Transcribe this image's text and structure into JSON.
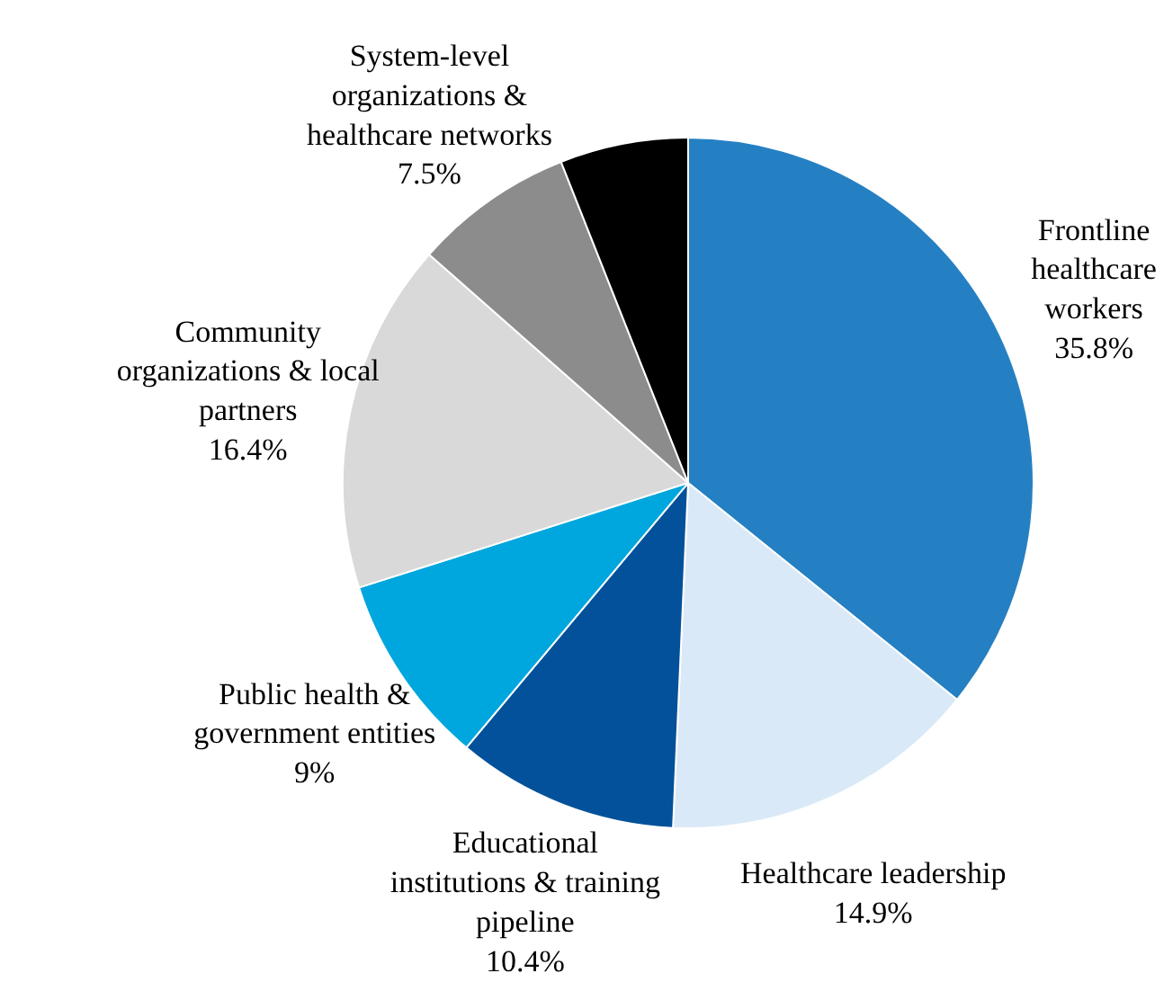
{
  "chart_data": {
    "type": "pie",
    "categories": [
      "Frontline\nhealthcare\nworkers",
      "Healthcare leadership",
      "Educational\ninstitutions & training\npipeline",
      "Public health &\ngovernment entities",
      "Community\norganizations & local\npartners",
      "System-level\norganizations &\nhealthcare networks",
      null
    ],
    "values": [
      35.8,
      14.9,
      10.4,
      9,
      16.4,
      7.5,
      6.0
    ],
    "value_labels": [
      "35.8%",
      "14.9%",
      "10.4%",
      "9%",
      "16.4%",
      "7.5%",
      null
    ],
    "colors": [
      "#2580c3",
      "#d9e9f7",
      "#02519a",
      "#00a6de",
      "#d9d9d9",
      "#8c8c8c",
      "#000000"
    ]
  }
}
